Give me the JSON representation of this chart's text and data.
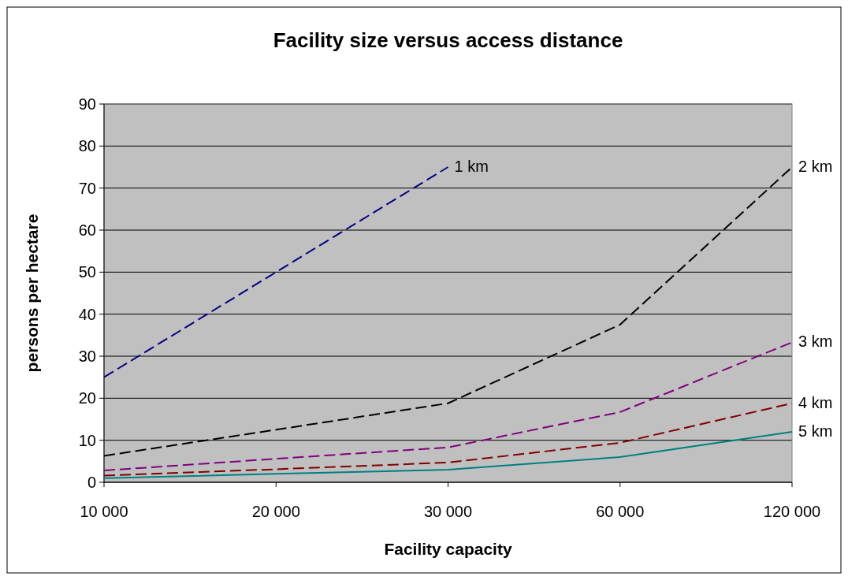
{
  "chart_data": {
    "type": "line",
    "title": "Facility size versus access distance",
    "xlabel": "Facility capacity",
    "ylabel": "persons per hectare",
    "categories": [
      "10 000",
      "20 000",
      "30 000",
      "60 000",
      "120 000"
    ],
    "series": [
      {
        "name": "1 km",
        "color": "#000080",
        "line_style": "dashed",
        "values": [
          25,
          50,
          75,
          null,
          null
        ]
      },
      {
        "name": "2 km",
        "color": "#000000",
        "line_style": "dashed",
        "values": [
          6.3,
          12.5,
          18.8,
          37.5,
          75
        ]
      },
      {
        "name": "3 km",
        "color": "#800080",
        "line_style": "dashed",
        "values": [
          2.8,
          5.6,
          8.3,
          16.7,
          33.3
        ]
      },
      {
        "name": "4 km",
        "color": "#800000",
        "line_style": "dashed",
        "values": [
          1.6,
          3.1,
          4.7,
          9.4,
          18.8
        ]
      },
      {
        "name": "5 km",
        "color": "#008080",
        "line_style": "solid",
        "values": [
          1,
          2,
          3,
          6,
          12
        ]
      }
    ],
    "ylim": [
      0,
      90
    ],
    "yticks": [
      0,
      10,
      20,
      30,
      40,
      50,
      60,
      70,
      80,
      90
    ],
    "grid": "y",
    "marker": "none"
  }
}
